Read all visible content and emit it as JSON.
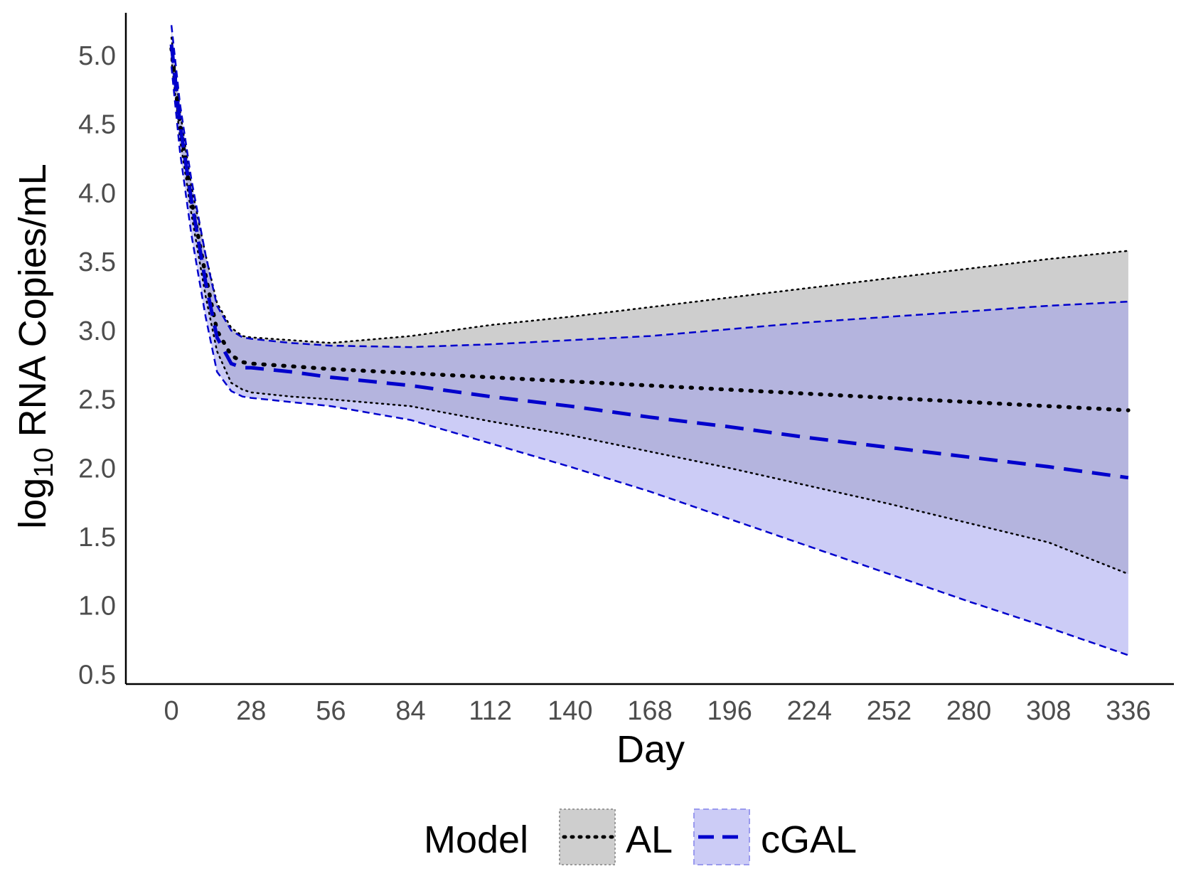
{
  "chart_data": {
    "type": "line",
    "title": "",
    "xlabel": "Day",
    "ylabel": {
      "prefix": "log",
      "subscript": "10",
      "suffix": " RNA Copies/mL"
    },
    "xlim": [
      -16,
      352
    ],
    "ylim": [
      0.43,
      5.31
    ],
    "x_ticks": [
      0,
      28,
      56,
      84,
      112,
      140,
      168,
      196,
      224,
      252,
      280,
      308,
      336
    ],
    "x_tick_labels": [
      "0",
      "28",
      "56",
      "84",
      "112",
      "140",
      "168",
      "196",
      "224",
      "252",
      "280",
      "308",
      "336"
    ],
    "y_ticks": [
      0.5,
      1.0,
      1.5,
      2.0,
      2.5,
      3.0,
      3.5,
      4.0,
      4.5,
      5.0
    ],
    "y_tick_labels": [
      "0.5",
      "1.0",
      "1.5",
      "2.0",
      "2.5",
      "3.0",
      "3.5",
      "4.0",
      "4.5",
      "5.0"
    ],
    "grid": false,
    "legend": {
      "position": "bottom",
      "title": "Model"
    },
    "series": [
      {
        "name": "AL",
        "line_style": "dotted",
        "line_color": "#000000",
        "band_color": "#bebebe",
        "band_opacity": 0.75,
        "x": [
          0,
          3,
          7,
          12,
          16,
          21,
          25,
          28,
          42,
          56,
          84,
          112,
          140,
          168,
          196,
          224,
          252,
          280,
          308,
          336
        ],
        "mean": [
          5.05,
          4.5,
          3.95,
          3.4,
          3.0,
          2.82,
          2.77,
          2.76,
          2.74,
          2.72,
          2.69,
          2.66,
          2.63,
          2.6,
          2.57,
          2.54,
          2.51,
          2.48,
          2.45,
          2.42
        ],
        "upper": [
          5.13,
          4.6,
          4.05,
          3.55,
          3.2,
          3.02,
          2.96,
          2.95,
          2.93,
          2.91,
          2.96,
          3.04,
          3.1,
          3.17,
          3.24,
          3.31,
          3.38,
          3.45,
          3.52,
          3.58
        ],
        "lower": [
          4.97,
          4.4,
          3.85,
          3.25,
          2.85,
          2.62,
          2.57,
          2.55,
          2.52,
          2.5,
          2.45,
          2.34,
          2.24,
          2.12,
          2.0,
          1.87,
          1.74,
          1.6,
          1.46,
          1.23
        ]
      },
      {
        "name": "cGAL",
        "line_style": "dashed",
        "line_color": "#0000cc",
        "band_color": "#9a9aee",
        "band_opacity": 0.5,
        "x": [
          0,
          3,
          7,
          12,
          16,
          21,
          25,
          28,
          42,
          56,
          84,
          112,
          140,
          168,
          196,
          224,
          252,
          280,
          308,
          336
        ],
        "mean": [
          5.08,
          4.5,
          3.95,
          3.35,
          2.95,
          2.76,
          2.73,
          2.73,
          2.7,
          2.66,
          2.6,
          2.52,
          2.45,
          2.37,
          2.3,
          2.22,
          2.15,
          2.08,
          2.01,
          1.93
        ],
        "upper": [
          5.22,
          4.65,
          4.1,
          3.55,
          3.18,
          3.0,
          2.95,
          2.94,
          2.91,
          2.89,
          2.88,
          2.9,
          2.93,
          2.96,
          3.01,
          3.06,
          3.1,
          3.14,
          3.18,
          3.21
        ],
        "lower": [
          4.92,
          4.3,
          3.7,
          3.1,
          2.7,
          2.56,
          2.52,
          2.51,
          2.48,
          2.45,
          2.35,
          2.18,
          2.01,
          1.83,
          1.63,
          1.43,
          1.23,
          1.03,
          0.84,
          0.64
        ]
      }
    ]
  }
}
